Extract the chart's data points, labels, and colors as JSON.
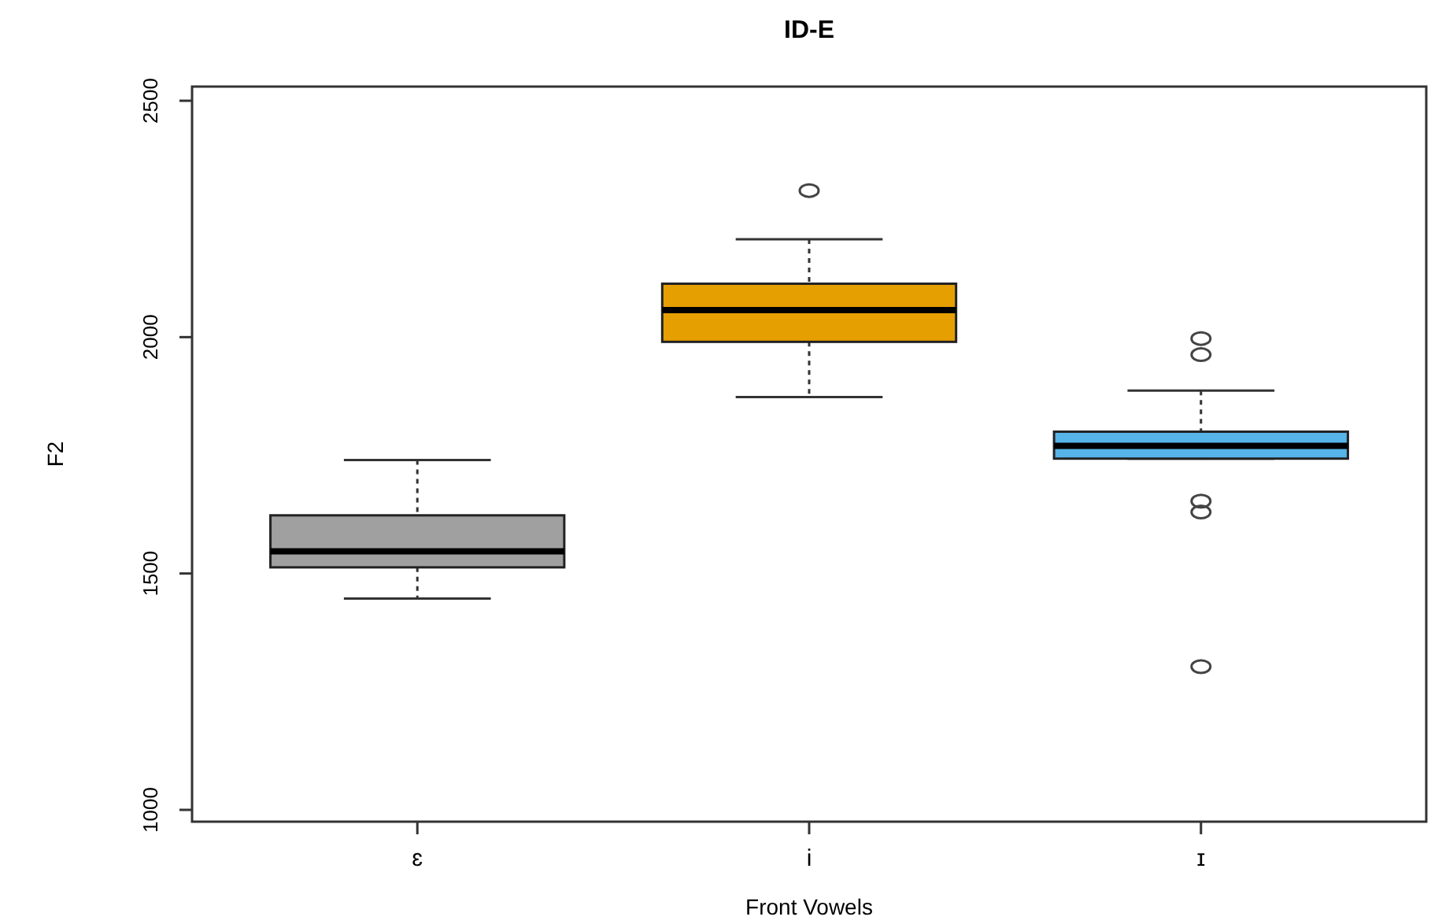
{
  "chart_data": {
    "type": "box",
    "title": "ID-E",
    "xlabel": "Front Vowels",
    "ylabel": "F2",
    "categories": [
      "ɛ",
      "i",
      "ɪ"
    ],
    "colors": [
      "#a0a0a0",
      "#e69f00",
      "#56b4e9"
    ],
    "boxes": [
      {
        "low": 1447,
        "q1": 1513,
        "median": 1547,
        "q3": 1623,
        "high": 1740
      },
      {
        "low": 1873,
        "q1": 1990,
        "median": 2057,
        "q3": 2113,
        "high": 2207,
        "outliers": [
          2310
        ]
      },
      {
        "low": 1743,
        "q1": 1743,
        "median": 1770,
        "q3": 1800,
        "high": 1887,
        "outliers": [
          1997,
          1963,
          1653,
          1630,
          1303
        ]
      }
    ],
    "ylim": [
      975,
      2530
    ],
    "yticks": [
      1000,
      1500,
      2000,
      2500
    ],
    "grid": false
  }
}
